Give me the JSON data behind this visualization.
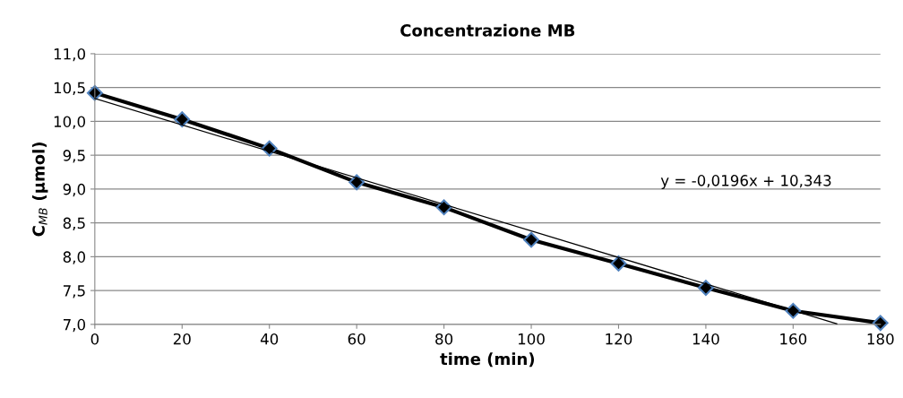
{
  "chart_data": {
    "type": "line",
    "title": "Concentrazione MB",
    "xlabel": "time (min)",
    "ylabel": "C$_{MB}$ (µmol)",
    "x": [
      0,
      20,
      40,
      60,
      80,
      100,
      120,
      140,
      160,
      180
    ],
    "series": [
      {
        "color": "#000000",
        "values": [
          10.42,
          10.03,
          9.6,
          9.1,
          8.73,
          8.25,
          7.9,
          7.54,
          7.2,
          7.02
        ],
        "marker": "diamond"
      },
      {
        "color": "#000000",
        "x": [
          0,
          170
        ],
        "values": [
          10.34,
          7.01
        ],
        "marker": "none"
      }
    ],
    "annotations": [
      "y = -0,0196x + 10,343"
    ],
    "xlim": [
      0,
      180
    ],
    "ylim": [
      7.0,
      11.0
    ],
    "xticks": [
      0,
      20,
      40,
      60,
      80,
      100,
      120,
      140,
      160,
      180
    ],
    "yticks": [
      {
        "value": 7.0,
        "label": "7,0"
      },
      {
        "value": 7.5,
        "label": "7,5"
      },
      {
        "value": 8.0,
        "label": "8,0"
      },
      {
        "value": 8.5,
        "label": "8,5"
      },
      {
        "value": 9.0,
        "label": "9,0"
      },
      {
        "value": 9.5,
        "label": "9,5"
      },
      {
        "value": 10.0,
        "label": "10,0"
      },
      {
        "value": 10.5,
        "label": "10,5"
      },
      {
        "value": 11.0,
        "label": "11,0"
      }
    ],
    "grid": "y",
    "legend": false,
    "line_style": "solid"
  }
}
